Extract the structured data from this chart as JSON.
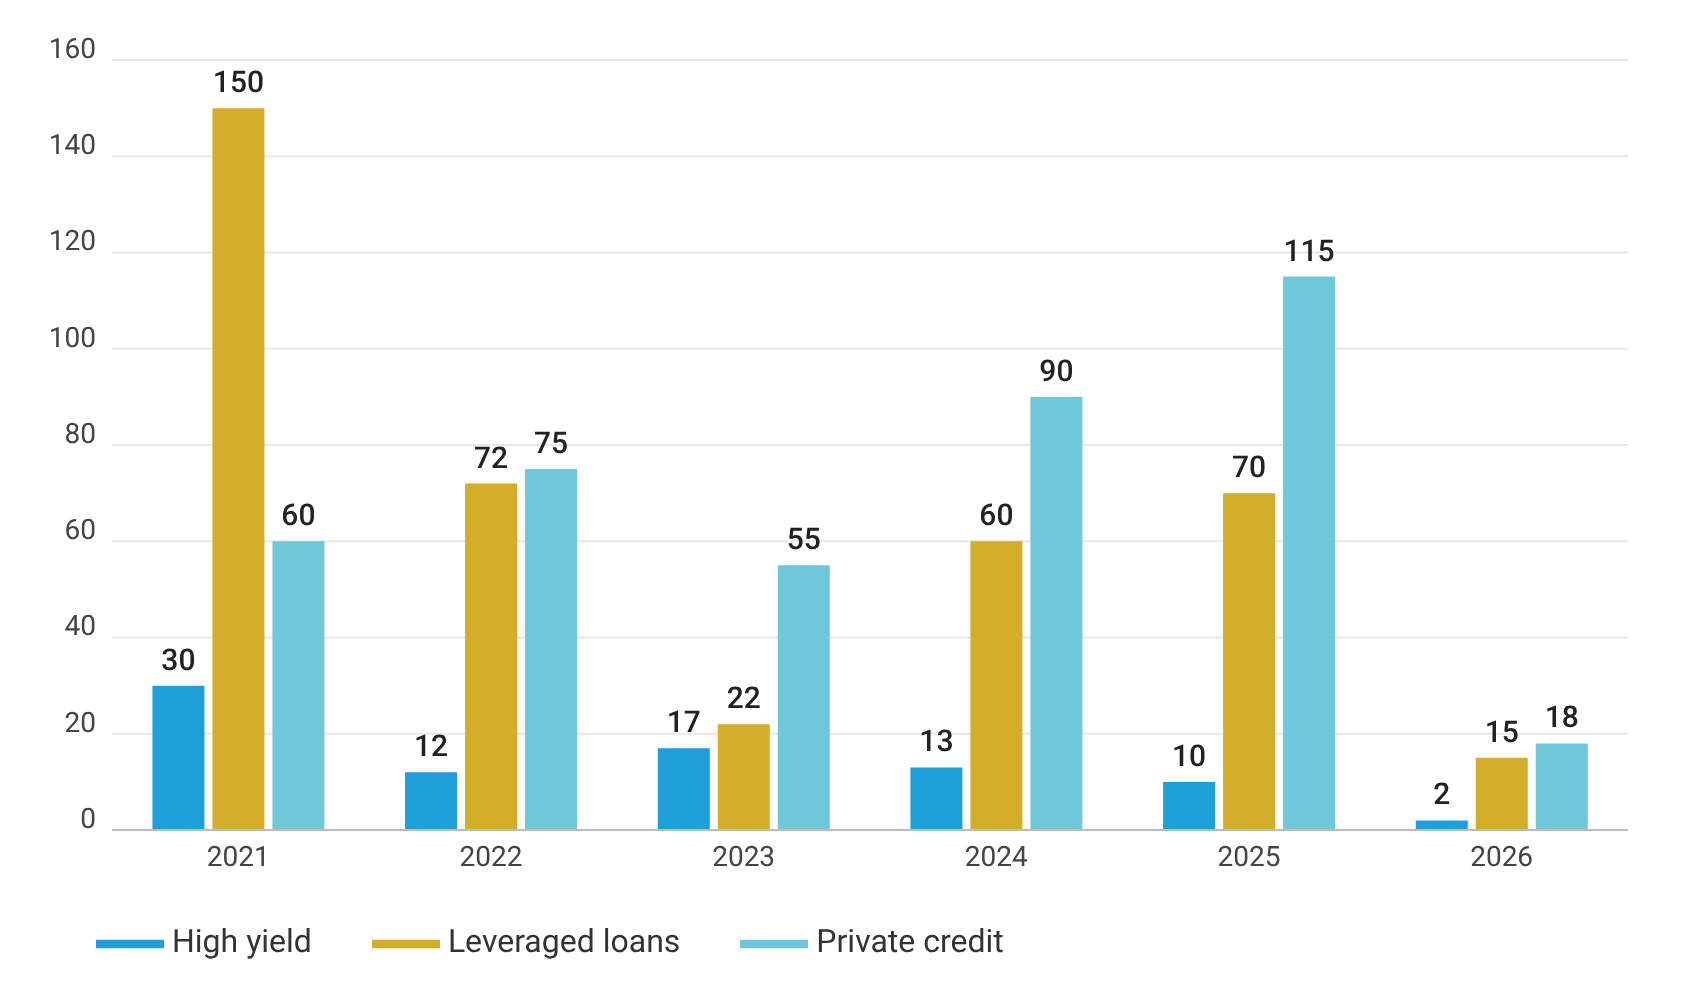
{
  "chart_data": {
    "type": "bar",
    "categories": [
      "2021",
      "2022",
      "2023",
      "2024",
      "2025",
      "2026"
    ],
    "series": [
      {
        "name": "High yield",
        "color": "#1f9fd8",
        "values": [
          30,
          12,
          17,
          13,
          10,
          2
        ]
      },
      {
        "name": "Leveraged loans",
        "color": "#d4ae2a",
        "values": [
          150,
          72,
          22,
          60,
          70,
          15
        ]
      },
      {
        "name": "Private credit",
        "color": "#6ec8d9",
        "values": [
          60,
          75,
          55,
          90,
          115,
          18
        ]
      }
    ],
    "ylim": [
      0,
      160
    ],
    "yticks": [
      0,
      20,
      40,
      60,
      80,
      100,
      120,
      140,
      160
    ],
    "grid": "y",
    "legend": "bottom left",
    "data_labels": true
  }
}
